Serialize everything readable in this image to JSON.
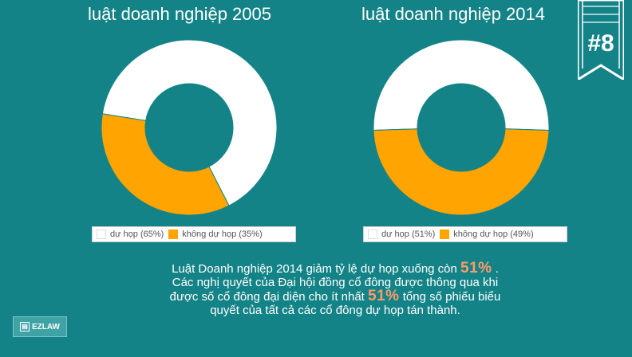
{
  "chart_data": [
    {
      "type": "pie",
      "title": "luật doanh nghiệp 2005",
      "categories": [
        "dự họp (65%)",
        "không dự họp (35%)"
      ],
      "values": [
        65,
        35
      ],
      "colors": [
        "#ffffff",
        "#ffa400"
      ],
      "legend": "bottom"
    },
    {
      "type": "pie",
      "title": "luật doanh nghiệp 2014",
      "categories": [
        "dự họp (51%)",
        "không dự họp (49%)"
      ],
      "values": [
        51,
        49
      ],
      "colors": [
        "#ffffff",
        "#ffa400"
      ],
      "legend": "bottom"
    }
  ],
  "badge": {
    "text": "#8"
  },
  "description": {
    "part1": "Luật Doanh nghiệp 2014 giảm tỷ lệ dự họp xuống còn",
    "highlight1": "51%",
    "part2": ". Các nghị quyết của Đại hội đồng cổ đông  được thông qua khi được số cổ đông đại diện cho ít nhất",
    "highlight2": "51%",
    "part3": " tổng số phiếu biểu quyết của tất cả các cổ đông dự họp tán thành."
  },
  "logo": {
    "text": "EZLAW",
    "icon": "ez-logo-icon"
  },
  "colors": {
    "background": "#148387",
    "accent": "#ffa400",
    "highlight": "#ff9b6a"
  }
}
